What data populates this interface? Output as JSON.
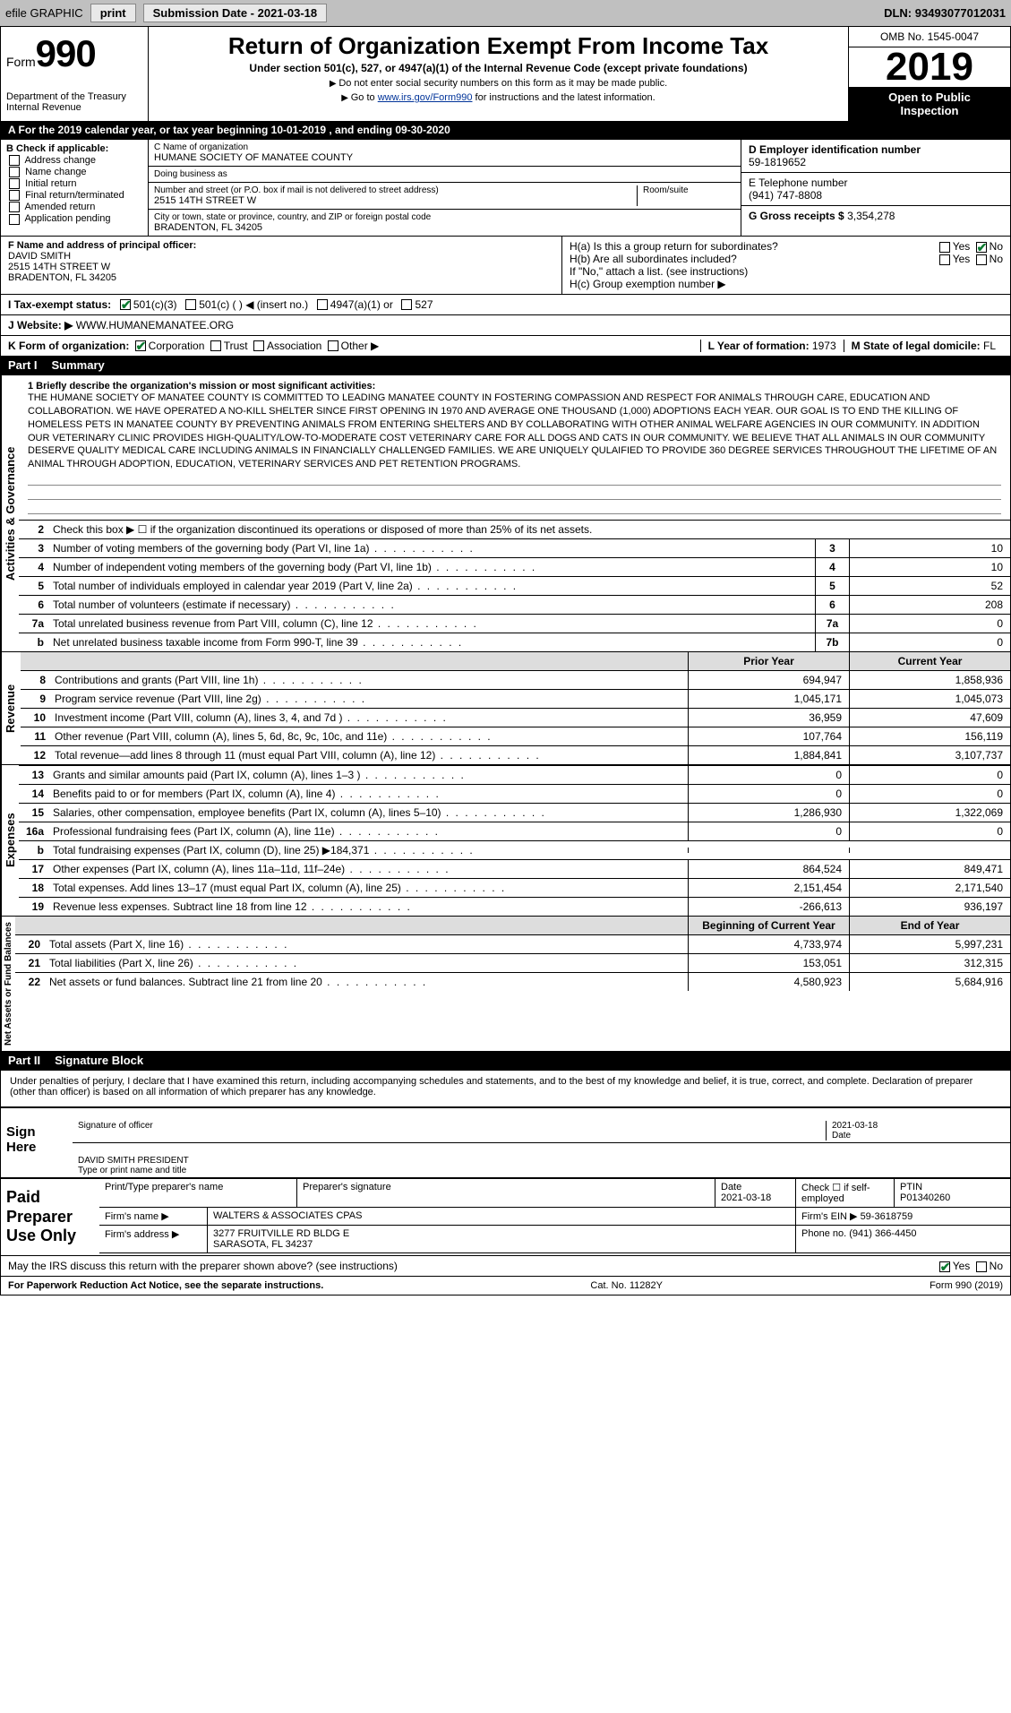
{
  "topbar": {
    "efile": "efile GRAPHIC",
    "print": "print",
    "sub_label": "Submission Date - ",
    "sub_date": "2021-03-18",
    "dln_label": "DLN: ",
    "dln": "93493077012031"
  },
  "header": {
    "form_word": "Form",
    "form_num": "990",
    "dept1": "Department of the Treasury",
    "dept2": "Internal Revenue",
    "title": "Return of Organization Exempt From Income Tax",
    "sub": "Under section 501(c), 527, or 4947(a)(1) of the Internal Revenue Code (except private foundations)",
    "note1": "Do not enter social security numbers on this form as it may be made public.",
    "note2_pre": "Go to ",
    "note2_link": "www.irs.gov/Form990",
    "note2_post": " for instructions and the latest information.",
    "omb": "OMB No. 1545-0047",
    "year": "2019",
    "open1": "Open to Public",
    "open2": "Inspection"
  },
  "period": "A   For the 2019 calendar year, or tax year beginning 10-01-2019   , and ending 09-30-2020",
  "boxB": {
    "title": "B Check if applicable:",
    "items": [
      "Address change",
      "Name change",
      "Initial return",
      "Final return/terminated",
      "Amended return",
      "Application pending"
    ]
  },
  "boxC": {
    "name_label": "C Name of organization",
    "name": "HUMANE SOCIETY OF MANATEE COUNTY",
    "dba_label": "Doing business as",
    "dba": "",
    "street_label": "Number and street (or P.O. box if mail is not delivered to street address)",
    "street": "2515 14TH STREET W",
    "room_label": "Room/suite",
    "city_label": "City or town, state or province, country, and ZIP or foreign postal code",
    "city": "BRADENTON, FL  34205"
  },
  "boxD": {
    "label": "D Employer identification number",
    "val": "59-1819652"
  },
  "boxE": {
    "label": "E Telephone number",
    "val": "(941) 747-8808"
  },
  "boxG": {
    "label": "G Gross receipts $ ",
    "val": "3,354,278"
  },
  "boxF": {
    "label": "F  Name and address of principal officer:",
    "name": "DAVID SMITH",
    "l2": "2515 14TH STREET W",
    "l3": "BRADENTON, FL  34205"
  },
  "boxH": {
    "a": "H(a)  Is this a group return for subordinates?",
    "b": "H(b)  Are all subordinates included?",
    "bnote": "If \"No,\" attach a list. (see instructions)",
    "c": "H(c)  Group exemption number ▶",
    "yes": "Yes",
    "no": "No"
  },
  "taxstatus": {
    "label": "I   Tax-exempt status:",
    "o1": "501(c)(3)",
    "o2": "501(c) (  ) ◀ (insert no.)",
    "o3": "4947(a)(1) or",
    "o4": "527"
  },
  "website": {
    "label": "J   Website: ▶",
    "val": "WWW.HUMANEMANATEE.ORG"
  },
  "rowK": {
    "label": "K Form of organization:",
    "o1": "Corporation",
    "o2": "Trust",
    "o3": "Association",
    "o4": "Other ▶",
    "L": "L Year of formation: ",
    "Lval": "1973",
    "M": "M State of legal domicile: ",
    "Mval": "FL"
  },
  "part1": {
    "label": "Part I",
    "title": "Summary"
  },
  "summary": {
    "side": "Activities & Governance",
    "l1": "1  Briefly describe the organization's mission or most significant activities:",
    "mission": "THE HUMANE SOCIETY OF MANATEE COUNTY IS COMMITTED TO LEADING MANATEE COUNTY IN FOSTERING COMPASSION AND RESPECT FOR ANIMALS THROUGH CARE, EDUCATION AND COLLABORATION. WE HAVE OPERATED A NO-KILL SHELTER SINCE FIRST OPENING IN 1970 AND AVERAGE ONE THOUSAND (1,000) ADOPTIONS EACH YEAR. OUR GOAL IS TO END THE KILLING OF HOMELESS PETS IN MANATEE COUNTY BY PREVENTING ANIMALS FROM ENTERING SHELTERS AND BY COLLABORATING WITH OTHER ANIMAL WELFARE AGENCIES IN OUR COMMUNITY. IN ADDITION OUR VETERINARY CLINIC PROVIDES HIGH-QUALITY/LOW-TO-MODERATE COST VETERINARY CARE FOR ALL DOGS AND CATS IN OUR COMMUNITY. WE BELIEVE THAT ALL ANIMALS IN OUR COMMUNITY DESERVE QUALITY MEDICAL CARE INCLUDING ANIMALS IN FINANCIALLY CHALLENGED FAMILIES. WE ARE UNIQUELY QULAIFIED TO PROVIDE 360 DEGREE SERVICES THROUGHOUT THE LIFETIME OF AN ANIMAL THROUGH ADOPTION, EDUCATION, VETERINARY SERVICES AND PET RETENTION PROGRAMS.",
    "l2": "Check this box ▶ ☐ if the organization discontinued its operations or disposed of more than 25% of its net assets.",
    "lines": [
      {
        "n": "3",
        "t": "Number of voting members of the governing body (Part VI, line 1a)",
        "box": "3",
        "v": "10"
      },
      {
        "n": "4",
        "t": "Number of independent voting members of the governing body (Part VI, line 1b)",
        "box": "4",
        "v": "10"
      },
      {
        "n": "5",
        "t": "Total number of individuals employed in calendar year 2019 (Part V, line 2a)",
        "box": "5",
        "v": "52"
      },
      {
        "n": "6",
        "t": "Total number of volunteers (estimate if necessary)",
        "box": "6",
        "v": "208"
      },
      {
        "n": "7a",
        "t": "Total unrelated business revenue from Part VIII, column (C), line 12",
        "box": "7a",
        "v": "0"
      },
      {
        "n": "b",
        "t": "Net unrelated business taxable income from Form 990-T, line 39",
        "box": "7b",
        "v": "0"
      }
    ]
  },
  "revhdr": {
    "h1": "Prior Year",
    "h2": "Current Year"
  },
  "revenue": {
    "side": "Revenue",
    "lines": [
      {
        "n": "8",
        "t": "Contributions and grants (Part VIII, line 1h)",
        "v1": "694,947",
        "v2": "1,858,936"
      },
      {
        "n": "9",
        "t": "Program service revenue (Part VIII, line 2g)",
        "v1": "1,045,171",
        "v2": "1,045,073"
      },
      {
        "n": "10",
        "t": "Investment income (Part VIII, column (A), lines 3, 4, and 7d )",
        "v1": "36,959",
        "v2": "47,609"
      },
      {
        "n": "11",
        "t": "Other revenue (Part VIII, column (A), lines 5, 6d, 8c, 9c, 10c, and 11e)",
        "v1": "107,764",
        "v2": "156,119"
      },
      {
        "n": "12",
        "t": "Total revenue—add lines 8 through 11 (must equal Part VIII, column (A), line 12)",
        "v1": "1,884,841",
        "v2": "3,107,737"
      }
    ]
  },
  "expenses": {
    "side": "Expenses",
    "lines": [
      {
        "n": "13",
        "t": "Grants and similar amounts paid (Part IX, column (A), lines 1–3 )",
        "v1": "0",
        "v2": "0"
      },
      {
        "n": "14",
        "t": "Benefits paid to or for members (Part IX, column (A), line 4)",
        "v1": "0",
        "v2": "0"
      },
      {
        "n": "15",
        "t": "Salaries, other compensation, employee benefits (Part IX, column (A), lines 5–10)",
        "v1": "1,286,930",
        "v2": "1,322,069"
      },
      {
        "n": "16a",
        "t": "Professional fundraising fees (Part IX, column (A), line 11e)",
        "v1": "0",
        "v2": "0"
      },
      {
        "n": "b",
        "t": "Total fundraising expenses (Part IX, column (D), line 25) ▶184,371",
        "v1": "",
        "v2": ""
      },
      {
        "n": "17",
        "t": "Other expenses (Part IX, column (A), lines 11a–11d, 11f–24e)",
        "v1": "864,524",
        "v2": "849,471"
      },
      {
        "n": "18",
        "t": "Total expenses. Add lines 13–17 (must equal Part IX, column (A), line 25)",
        "v1": "2,151,454",
        "v2": "2,171,540"
      },
      {
        "n": "19",
        "t": "Revenue less expenses. Subtract line 18 from line 12",
        "v1": "-266,613",
        "v2": "936,197"
      }
    ]
  },
  "nahdr": {
    "h1": "Beginning of Current Year",
    "h2": "End of Year"
  },
  "netassets": {
    "side": "Net Assets or Fund Balances",
    "lines": [
      {
        "n": "20",
        "t": "Total assets (Part X, line 16)",
        "v1": "4,733,974",
        "v2": "5,997,231"
      },
      {
        "n": "21",
        "t": "Total liabilities (Part X, line 26)",
        "v1": "153,051",
        "v2": "312,315"
      },
      {
        "n": "22",
        "t": "Net assets or fund balances. Subtract line 21 from line 20",
        "v1": "4,580,923",
        "v2": "5,684,916"
      }
    ]
  },
  "part2": {
    "label": "Part II",
    "title": "Signature Block"
  },
  "perjury": "Under penalties of perjury, I declare that I have examined this return, including accompanying schedules and statements, and to the best of my knowledge and belief, it is true, correct, and complete. Declaration of preparer (other than officer) is based on all information of which preparer has any knowledge.",
  "sign": {
    "here": "Sign Here",
    "sig_label": "Signature of officer",
    "date_label": "Date",
    "date": "2021-03-18",
    "name": "DAVID SMITH PRESIDENT",
    "name_label": "Type or print name and title"
  },
  "paid": {
    "label": "Paid Preparer Use Only",
    "h_prep": "Print/Type preparer's name",
    "h_sig": "Preparer's signature",
    "h_date": "Date",
    "date": "2021-03-18",
    "h_check": "Check ☐ if self-employed",
    "h_ptin": "PTIN",
    "ptin": "P01340260",
    "firm_name_l": "Firm's name    ▶",
    "firm_name": "WALTERS & ASSOCIATES CPAS",
    "firm_ein_l": "Firm's EIN ▶",
    "firm_ein": "59-3618759",
    "firm_addr_l": "Firm's address ▶",
    "firm_addr1": "3277 FRUITVILLE RD BLDG E",
    "firm_addr2": "SARASOTA, FL  34237",
    "phone_l": "Phone no.",
    "phone": "(941) 366-4450"
  },
  "discuss": {
    "q": "May the IRS discuss this return with the preparer shown above? (see instructions)",
    "yes": "Yes",
    "no": "No"
  },
  "footer": {
    "left": "For Paperwork Reduction Act Notice, see the separate instructions.",
    "mid": "Cat. No. 11282Y",
    "right": "Form 990 (2019)"
  }
}
